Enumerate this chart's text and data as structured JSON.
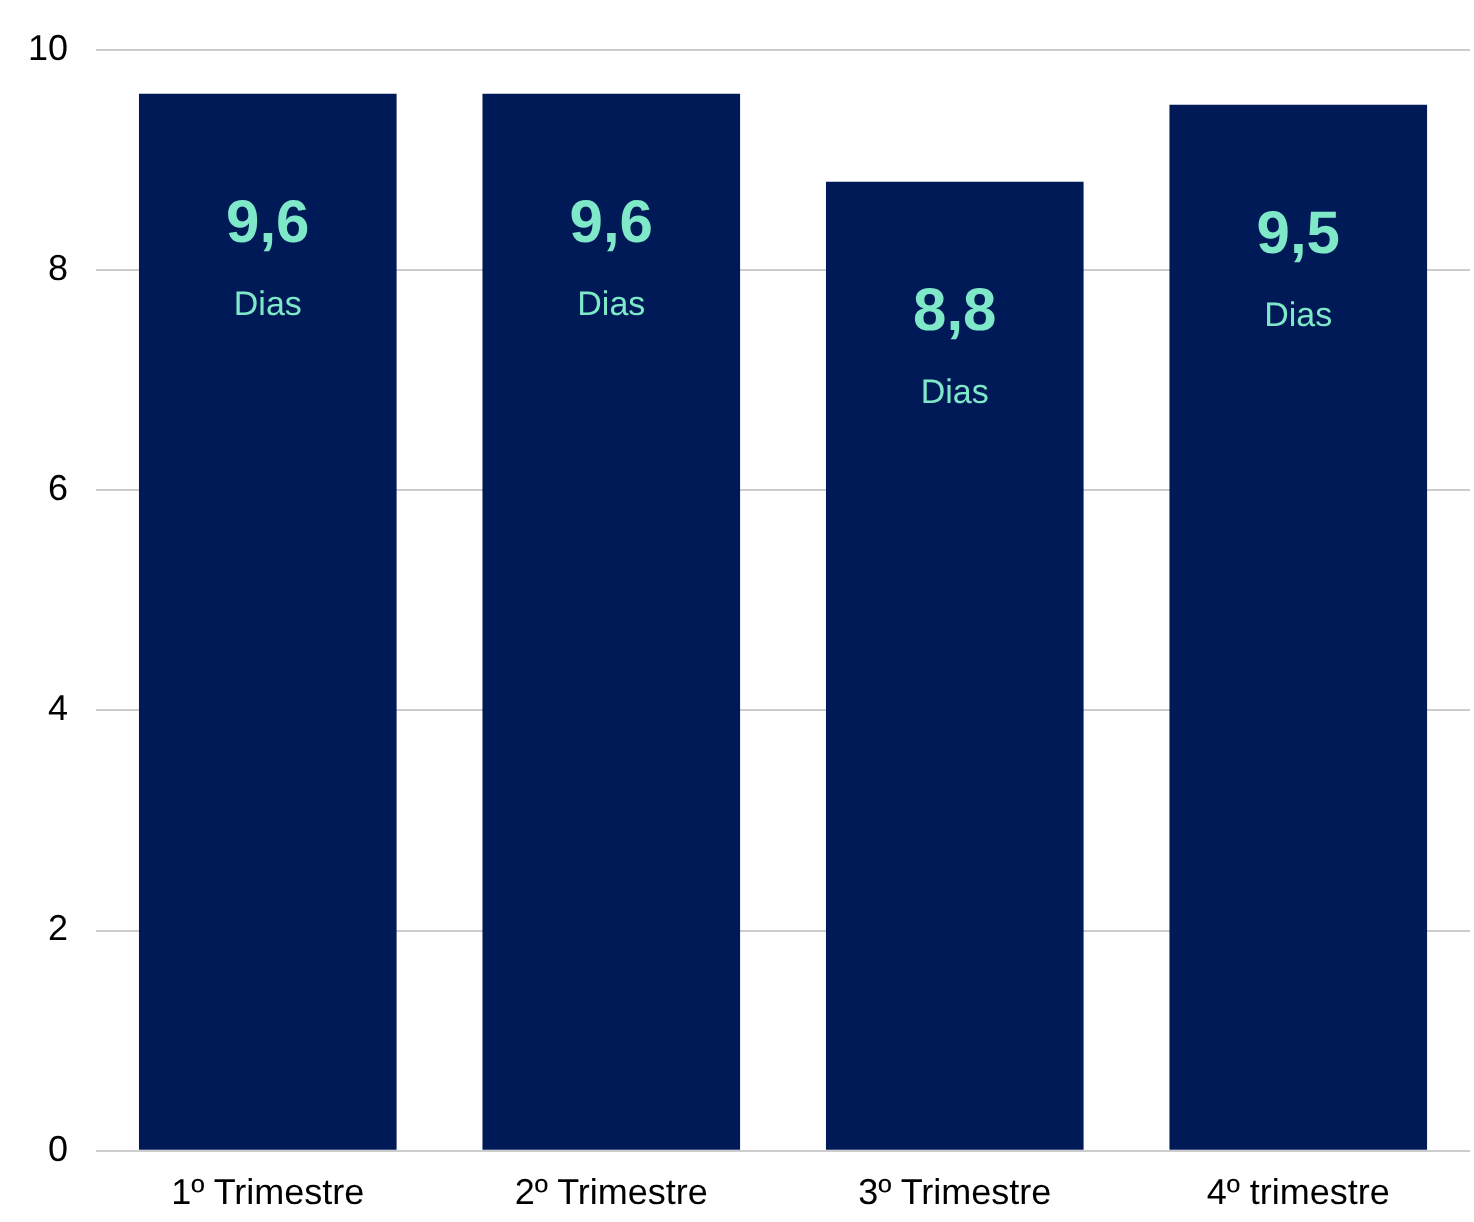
{
  "chart_data": {
    "type": "bar",
    "categories": [
      "1º Trimestre",
      "2º Trimestre",
      "3º Trimestre",
      "4º trimestre"
    ],
    "values": [
      9.6,
      9.6,
      8.8,
      9.5
    ],
    "value_labels": [
      "9,6\nDias",
      "9,6\nDias",
      "8,8\nDias",
      "9,5\nDias"
    ],
    "color": "#001a57",
    "ylim": [
      0,
      10
    ],
    "yticks": [
      0,
      2,
      4,
      6,
      8,
      10
    ],
    "grid": "y",
    "legend": false
  }
}
